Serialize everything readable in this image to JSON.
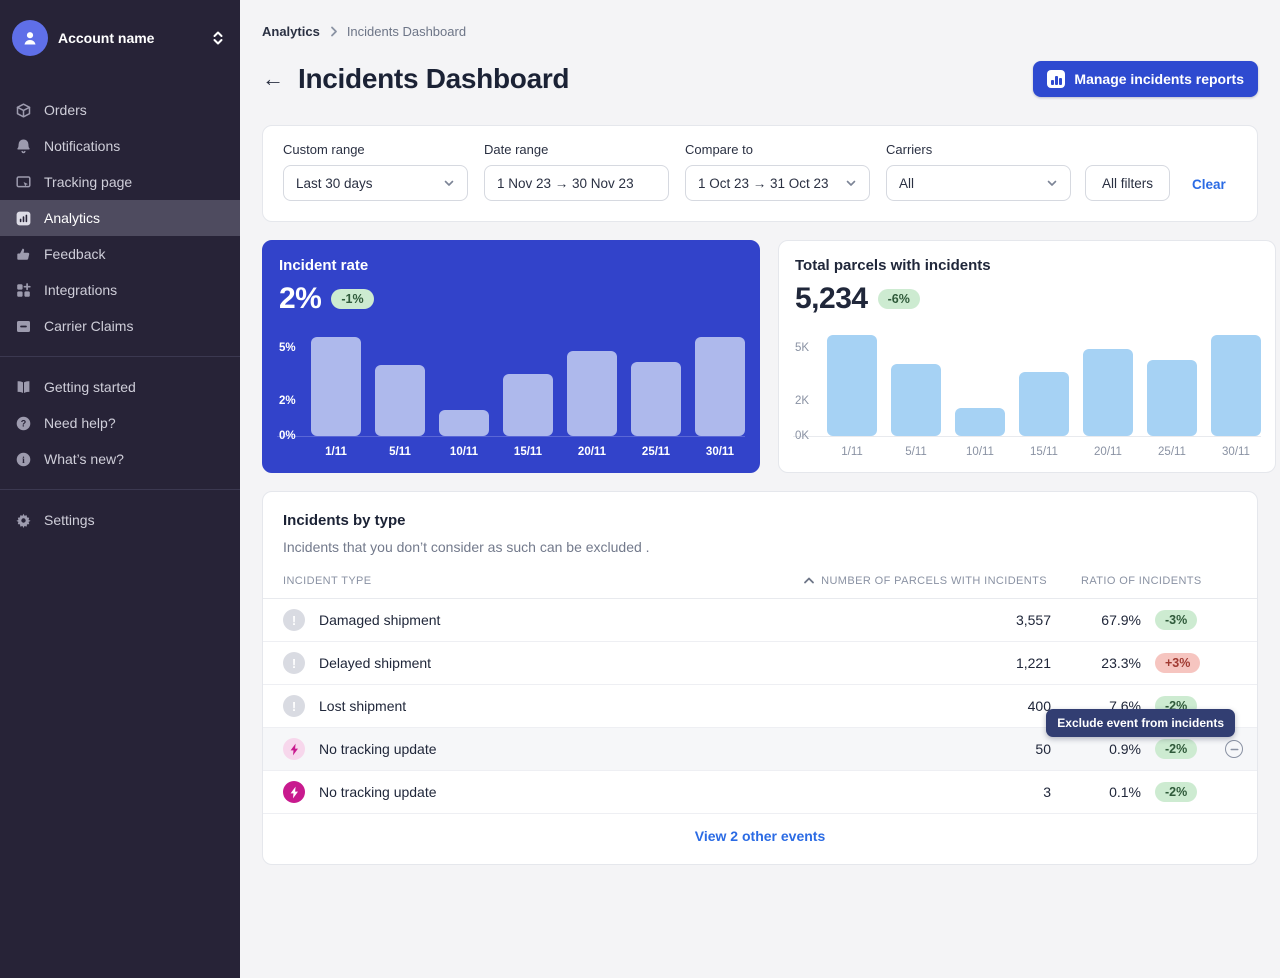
{
  "colors": {
    "sidebar_bg": "#272337",
    "sidebar_selected": "#4e4b5f",
    "primary_blue": "#2e4ad0",
    "blue_card": "#3243ca",
    "blue_card_bar": "#aeb9ec",
    "light_card_bar": "#a6d2f4",
    "badge_green_bg": "#cdebd1",
    "badge_green_text": "#2f5a3a",
    "badge_red_bg": "#f6c5c0",
    "badge_red_text": "#a13a32",
    "link_blue": "#2b6be4",
    "tooltip_bg": "#323e72",
    "magenta": "#c81a8e"
  },
  "sidebar": {
    "account": {
      "name": "Account name",
      "icon": "user-icon",
      "expander": "up-down-chevron-icon"
    },
    "items": [
      {
        "id": "orders",
        "label": "Orders",
        "icon": "package-icon",
        "selected": false
      },
      {
        "id": "notifications",
        "label": "Notifications",
        "icon": "bell-icon",
        "selected": false
      },
      {
        "id": "tracking-page",
        "label": "Tracking page",
        "icon": "browser-cursor-icon",
        "selected": false
      },
      {
        "id": "analytics",
        "label": "Analytics",
        "icon": "bar-chart-icon",
        "selected": true
      },
      {
        "id": "feedback",
        "label": "Feedback",
        "icon": "thumbs-up-icon",
        "selected": false
      },
      {
        "id": "integrations",
        "label": "Integrations",
        "icon": "grid-plus-icon",
        "selected": false
      },
      {
        "id": "carrier-claims",
        "label": "Carrier Claims",
        "icon": "box-minus-icon",
        "selected": false
      }
    ],
    "secondary_items": [
      {
        "id": "getting-started",
        "label": "Getting started",
        "icon": "book-icon"
      },
      {
        "id": "need-help",
        "label": "Need help?",
        "icon": "question-circle-icon"
      },
      {
        "id": "whats-new",
        "label": "What’s new?",
        "icon": "info-circle-icon"
      }
    ],
    "footer_items": [
      {
        "id": "settings",
        "label": "Settings",
        "icon": "gear-icon"
      }
    ]
  },
  "header": {
    "breadcrumb": [
      "Analytics",
      "Incidents Dashboard"
    ],
    "back_arrow": "←",
    "title": "Incidents Dashboard",
    "manage_button": "Manage incidents reports"
  },
  "filters": {
    "fields": [
      {
        "label": "Custom range",
        "value": "Last 30 days",
        "chevron": true
      },
      {
        "label": "Date range",
        "value": "1 Nov 23 → 30 Nov 23",
        "chevron": false
      },
      {
        "label": "Compare to",
        "value": "1 Oct 23 → 31 Oct 23",
        "chevron": true
      },
      {
        "label": "Carriers",
        "value": "All",
        "chevron": true
      }
    ],
    "all_filters_label": "All filters",
    "clear_label": "Clear"
  },
  "chart_data": [
    {
      "type": "bar",
      "title": "Incident rate",
      "headline_value": "2%",
      "delta": "-1%",
      "delta_variant": "green",
      "categories": [
        "1/11",
        "5/11",
        "10/11",
        "15/11",
        "20/11",
        "25/11",
        "30/11"
      ],
      "values": [
        5.6,
        4.0,
        1.5,
        3.5,
        4.8,
        4.2,
        5.6
      ],
      "unit": "%",
      "y_ticks": [
        {
          "label": "5%",
          "value": 5
        },
        {
          "label": "2%",
          "value": 2
        },
        {
          "label": "0%",
          "value": 0
        }
      ],
      "ylim": [
        0,
        6
      ],
      "theme": "blue",
      "legend": "none",
      "grid": "off",
      "xlabel": "",
      "ylabel": ""
    },
    {
      "type": "bar",
      "title": "Total parcels with incidents",
      "headline_value": "5,234",
      "delta": "-6%",
      "delta_variant": "green",
      "categories": [
        "1/11",
        "5/11",
        "10/11",
        "15/11",
        "20/11",
        "25/11",
        "30/11"
      ],
      "values": [
        5.7,
        4.1,
        1.6,
        3.6,
        4.9,
        4.3,
        5.7
      ],
      "unit": "K",
      "y_ticks": [
        {
          "label": "5K",
          "value": 5
        },
        {
          "label": "2K",
          "value": 2
        },
        {
          "label": "0K",
          "value": 0
        }
      ],
      "ylim": [
        0,
        6
      ],
      "theme": "light",
      "legend": "none",
      "grid": "off",
      "xlabel": "",
      "ylabel": ""
    }
  ],
  "table": {
    "title": "Incidents by type",
    "subtitle": "Incidents that you don’t consider as such can be excluded .",
    "columns": {
      "type": "INCIDENT TYPE",
      "parcels": "NUMBER OF PARCELS WITH INCIDENTS",
      "ratio": "RATIO OF INCIDENTS"
    },
    "sort_icon": "chevron-up-icon",
    "rows": [
      {
        "icon": "alert",
        "label": "Damaged shipment",
        "parcels": "3,557",
        "ratio": "67.9%",
        "delta": "-3%",
        "delta_variant": "green",
        "highlighted": false,
        "show_exclude": false
      },
      {
        "icon": "alert",
        "label": "Delayed shipment",
        "parcels": "1,221",
        "ratio": "23.3%",
        "delta": "+3%",
        "delta_variant": "red",
        "highlighted": false,
        "show_exclude": false
      },
      {
        "icon": "alert",
        "label": "Lost shipment",
        "parcels": "400",
        "ratio": "7.6%",
        "delta": "-2%",
        "delta_variant": "green",
        "highlighted": false,
        "show_exclude": false
      },
      {
        "icon": "lightning-light",
        "label": "No tracking update",
        "parcels": "50",
        "ratio": "0.9%",
        "delta": "-2%",
        "delta_variant": "green",
        "highlighted": true,
        "show_exclude": true,
        "tooltip": "Exclude event from incidents"
      },
      {
        "icon": "lightning-solid",
        "label": "No tracking update",
        "parcels": "3",
        "ratio": "0.1%",
        "delta": "-2%",
        "delta_variant": "green",
        "highlighted": false,
        "show_exclude": false
      }
    ],
    "footer_link": "View 2 other events"
  }
}
